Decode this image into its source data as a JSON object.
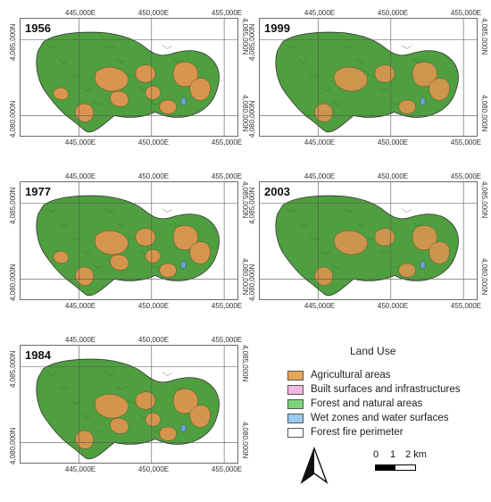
{
  "panels": [
    {
      "year": "1956",
      "agri": 1.0
    },
    {
      "year": "1999",
      "agri": 0.75
    },
    {
      "year": "1977",
      "agri": 0.95
    },
    {
      "year": "2003",
      "agri": 0.7
    },
    {
      "year": "1984",
      "agri": 0.85
    }
  ],
  "axes": {
    "x_ticks": [
      "445,000E",
      "450,000E",
      "455,000E"
    ],
    "y_ticks": [
      "4,085,000N",
      "4,080,000N"
    ]
  },
  "legend": {
    "title": "Land Use",
    "items": [
      {
        "label": "Agricultural areas",
        "color": "#e8a65a"
      },
      {
        "label": "Built surfaces and infrastructures",
        "color": "#f4b6de"
      },
      {
        "label": "Forest and natural areas",
        "color": "#7ed37a"
      },
      {
        "label": "Wet zones and water surfaces",
        "color": "#9cc9ee"
      },
      {
        "label": "Forest fire perimeter",
        "color": "#ffffff"
      }
    ]
  },
  "scale": {
    "labels": [
      "0",
      "1",
      "2 km"
    ]
  },
  "colors": {
    "forest": "#4f9e3f",
    "forest_dark": "#2f6e28",
    "agri": "#d9954f",
    "water": "#6aa3d8",
    "outline": "#333333"
  }
}
